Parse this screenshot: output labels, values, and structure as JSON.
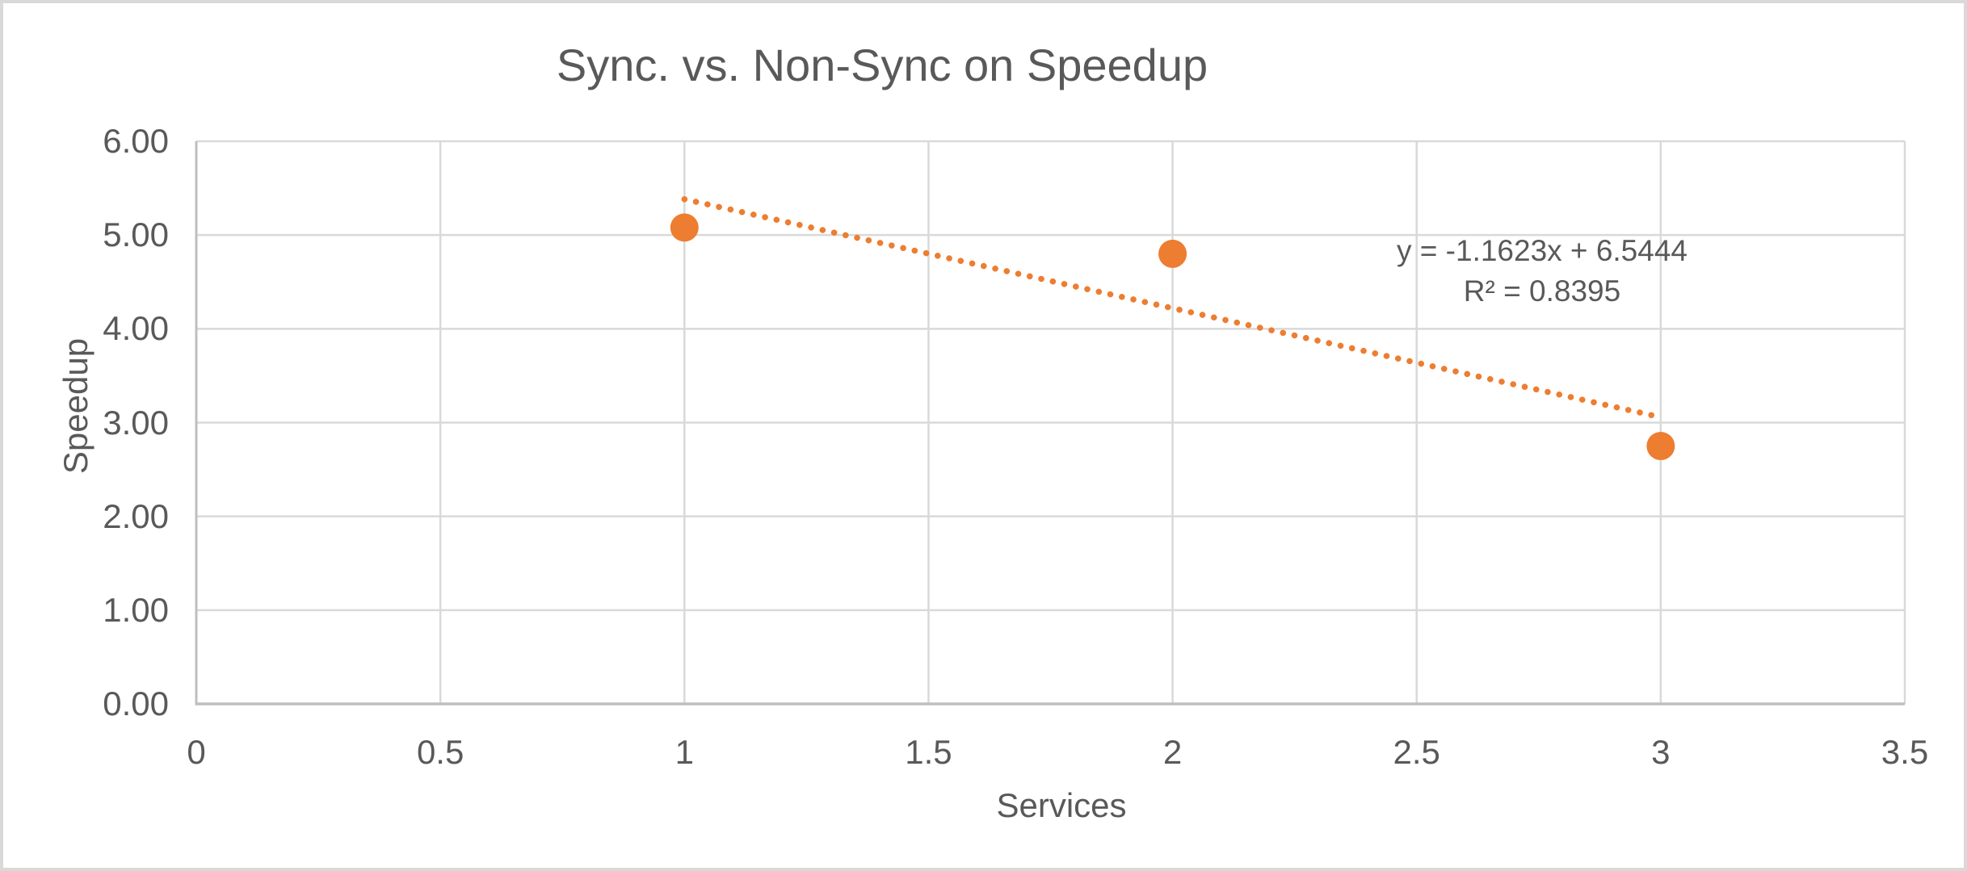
{
  "chart_data": {
    "type": "scatter",
    "title": "Sync. vs. Non-Sync on Speedup",
    "xlabel": "Services",
    "ylabel": "Speedup",
    "xlim": [
      0,
      3.5
    ],
    "ylim": [
      0,
      6
    ],
    "grid": true,
    "legend": false,
    "x_ticks": [
      {
        "v": 0,
        "label": "0"
      },
      {
        "v": 0.5,
        "label": "0.5"
      },
      {
        "v": 1,
        "label": "1"
      },
      {
        "v": 1.5,
        "label": "1.5"
      },
      {
        "v": 2,
        "label": "2"
      },
      {
        "v": 2.5,
        "label": "2.5"
      },
      {
        "v": 3,
        "label": "3"
      },
      {
        "v": 3.5,
        "label": "3.5"
      }
    ],
    "y_ticks": [
      {
        "v": 0,
        "label": "0.00"
      },
      {
        "v": 1,
        "label": "1.00"
      },
      {
        "v": 2,
        "label": "2.00"
      },
      {
        "v": 3,
        "label": "3.00"
      },
      {
        "v": 4,
        "label": "4.00"
      },
      {
        "v": 5,
        "label": "5.00"
      },
      {
        "v": 6,
        "label": "6.00"
      }
    ],
    "series": [
      {
        "name": "Speedup",
        "marker": "circle",
        "marker_color": "#ED7D31",
        "points": [
          {
            "x": 1,
            "y": 5.08
          },
          {
            "x": 2,
            "y": 4.8
          },
          {
            "x": 3,
            "y": 2.75
          }
        ]
      }
    ],
    "trendline": {
      "style": "dotted",
      "color": "#ED7D31",
      "slope": -1.1623,
      "intercept": 6.5444,
      "x_range": [
        1,
        3
      ],
      "equation_label": "y = -1.1623x + 6.5444",
      "r2_label": "R² = 0.8395"
    },
    "colors": {
      "text": "#595959",
      "gridline": "#D9D9D9",
      "axis_line": "#BFBFBF",
      "marker": "#ED7D31",
      "background": "#FFFFFF",
      "frame_border": "#D9D9D9"
    }
  }
}
